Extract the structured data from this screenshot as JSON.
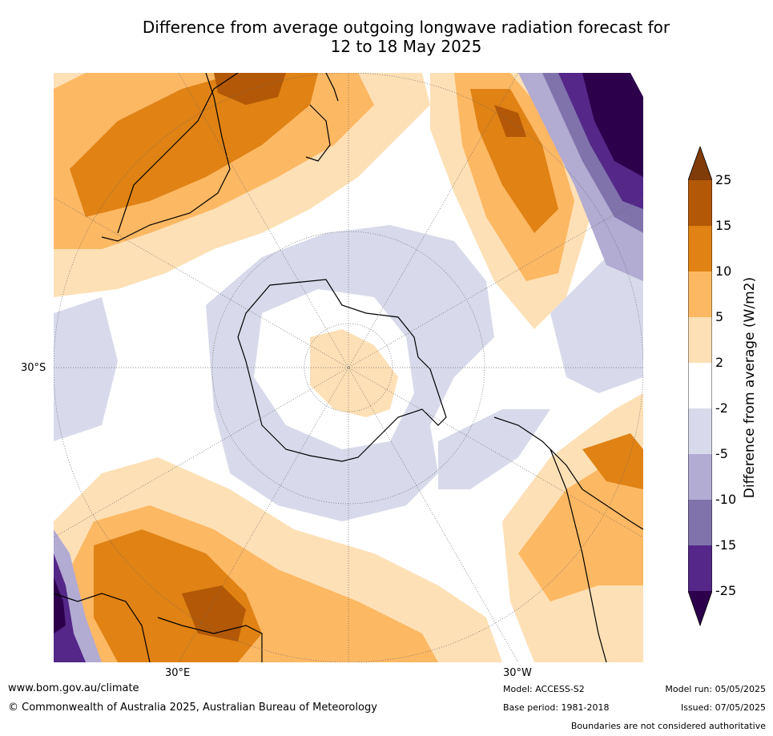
{
  "title_line1": "Difference from average outgoing longwave radiation forecast for",
  "title_line2": "12 to 18 May 2025",
  "map": {
    "lat_label": "30°S",
    "lon_label_left": "30°E",
    "lon_label_right": "30°W"
  },
  "colorbar": {
    "label": "Difference from average (W/m2)",
    "ticks": [
      "25",
      "15",
      "10",
      "5",
      "2",
      "-2",
      "-5",
      "-10",
      "-15",
      "-25"
    ],
    "colors": {
      "above_25": "#7f3b08",
      "15_25": "#b35806",
      "10_15": "#e08214",
      "5_10": "#fdb863",
      "2_5": "#fee0b6",
      "neutral": "#ffffff",
      "m5_m2": "#d8daeb",
      "m10_m5": "#b2abd2",
      "m15_m10": "#8073ac",
      "m25_m15": "#542788",
      "below_m25": "#2d004b"
    }
  },
  "footer": {
    "website": "www.bom.gov.au/climate",
    "copyright": "© Commonwealth of Australia 2025, Australian Bureau of Meteorology",
    "model": "Model: ACCESS-S2",
    "base_period": "Base period: 1981-2018",
    "model_run": "Model run: 05/05/2025",
    "issued": "Issued: 07/05/2025",
    "disclaimer": "Boundaries are not considered authoritative"
  }
}
